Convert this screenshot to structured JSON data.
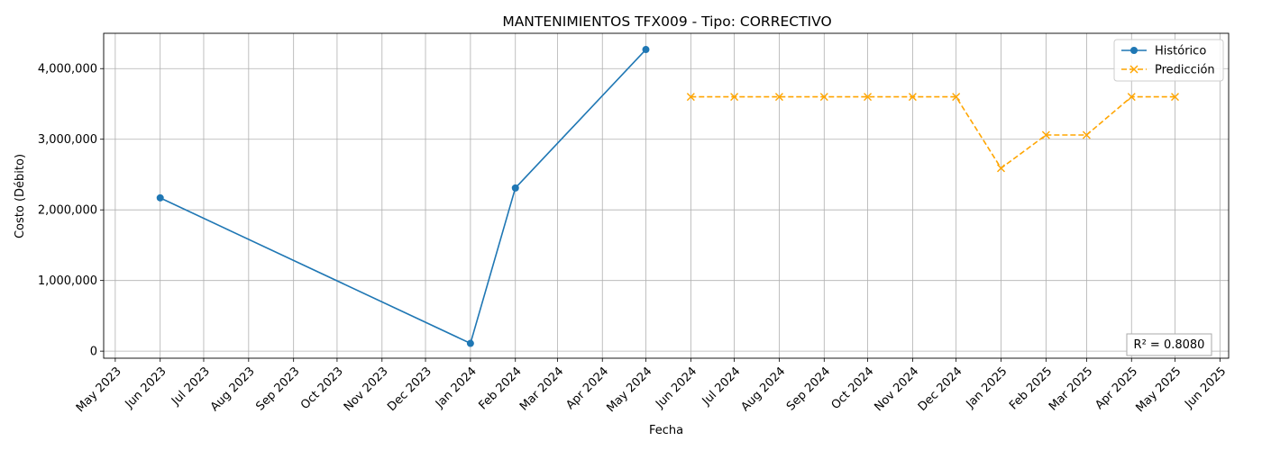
{
  "chart_data": {
    "type": "line",
    "title": "MANTENIMIENTOS TFX009 - Tipo: CORRECTIVO",
    "xlabel": "Fecha",
    "ylabel": "Costo (Débito)",
    "x_range": [
      "2023-04-23",
      "2025-06-07"
    ],
    "ylim": [
      -100000,
      4500000
    ],
    "y_ticks": [
      0,
      1000000,
      2000000,
      3000000,
      4000000
    ],
    "y_tick_labels": [
      "0",
      "1,000,000",
      "2,000,000",
      "3,000,000",
      "4,000,000"
    ],
    "x_ticks": [
      "2023-05-01",
      "2023-06-01",
      "2023-07-01",
      "2023-08-01",
      "2023-09-01",
      "2023-10-01",
      "2023-11-01",
      "2023-12-01",
      "2024-01-01",
      "2024-02-01",
      "2024-03-01",
      "2024-04-01",
      "2024-05-01",
      "2024-06-01",
      "2024-07-01",
      "2024-08-01",
      "2024-09-01",
      "2024-10-01",
      "2024-11-01",
      "2024-12-01",
      "2025-01-01",
      "2025-02-01",
      "2025-03-01",
      "2025-04-01",
      "2025-05-01",
      "2025-06-01"
    ],
    "x_tick_labels": [
      "May 2023",
      "Jun 2023",
      "Jul 2023",
      "Aug 2023",
      "Sep 2023",
      "Oct 2023",
      "Nov 2023",
      "Dec 2023",
      "Jan 2024",
      "Feb 2024",
      "Mar 2024",
      "Apr 2024",
      "May 2024",
      "Jun 2024",
      "Jul 2024",
      "Aug 2024",
      "Sep 2024",
      "Oct 2024",
      "Nov 2024",
      "Dec 2024",
      "Jan 2025",
      "Feb 2025",
      "Mar 2025",
      "Apr 2025",
      "May 2025",
      "Jun 2025"
    ],
    "grid": true,
    "legend_position": "top-right",
    "series": [
      {
        "name": "Histórico",
        "color": "#1f77b4",
        "style": "solid",
        "marker": "circle",
        "x": [
          "2023-06-01",
          "2024-01-01",
          "2024-02-01",
          "2024-05-01"
        ],
        "y": [
          2170000,
          110000,
          2310000,
          4270000
        ]
      },
      {
        "name": "Predicción",
        "color": "#ffa500",
        "style": "dashed",
        "marker": "x",
        "x": [
          "2024-06-01",
          "2024-07-01",
          "2024-08-01",
          "2024-09-01",
          "2024-10-01",
          "2024-11-01",
          "2024-12-01",
          "2025-01-01",
          "2025-02-01",
          "2025-03-01",
          "2025-04-01",
          "2025-05-01"
        ],
        "y": [
          3600000,
          3600000,
          3600000,
          3600000,
          3600000,
          3600000,
          3600000,
          2590000,
          3060000,
          3060000,
          3600000,
          3600000
        ]
      }
    ],
    "annotation": "R² = 0.8080"
  }
}
